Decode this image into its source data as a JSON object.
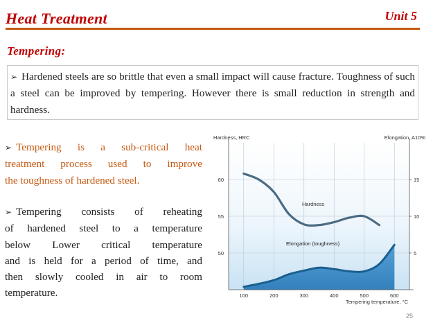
{
  "header": {
    "title": "Heat Treatment",
    "unit": "Unit 5"
  },
  "section": {
    "heading": "Tempering:"
  },
  "intro_bullet": "Hardened steels are so brittle that even a small impact will cause fracture. Toughness of such a steel can be improved by tempering. However there is small reduction in strength and hardness.",
  "left_bullets": {
    "p1": {
      "line1": "Tempering is a sub-critical heat",
      "line2": "treatment process used to improve",
      "line3": "the toughness of hardened steel."
    },
    "p2": {
      "line1": "Tempering consists of reheating",
      "line2": "of hardened steel to a temperature",
      "line3": "below Lower critical temperature",
      "line4": "and is held for a period of time, and",
      "line5": "then slowly cooled in air to room",
      "line6": "temperature."
    }
  },
  "colors": {
    "title_red": "#c00000",
    "rule_orange": "#c55a11",
    "chart_blue": "#1f78bd",
    "curve_grey": "#4a6b82",
    "curve_blue": "#1a5f8f"
  },
  "chart_data": {
    "type": "line",
    "title": "",
    "xlabel": "Tempering temperature, °C",
    "ylabel": "Hardness, HRC",
    "y2label": "Elongation, A10%",
    "xlim": [
      50,
      650
    ],
    "ylim": [
      45,
      65
    ],
    "y2lim": [
      0,
      20
    ],
    "xticks": [
      100,
      200,
      300,
      400,
      500,
      600
    ],
    "xtick_labels": [
      "100",
      "200",
      "300",
      "400",
      "500",
      "600"
    ],
    "yticks": [
      50,
      55,
      60
    ],
    "ytick_labels": [
      "50",
      "55",
      "60"
    ],
    "y2ticks": [
      5,
      10,
      15
    ],
    "y2tick_labels": [
      "5",
      "10",
      "15"
    ],
    "grid": true,
    "series": [
      {
        "name": "Hardness",
        "axis": "left",
        "x": [
          100,
          150,
          200,
          250,
          300,
          350,
          400,
          450,
          500,
          550
        ],
        "values": [
          60.8,
          60.0,
          58.3,
          55.3,
          53.9,
          53.8,
          54.2,
          54.8,
          55.0,
          53.8
        ]
      },
      {
        "name": "Elongation (toughness)",
        "axis": "right",
        "x": [
          100,
          150,
          200,
          250,
          300,
          350,
          400,
          450,
          500,
          550,
          600
        ],
        "values": [
          0.4,
          0.8,
          1.3,
          2.1,
          2.6,
          3.0,
          2.8,
          2.5,
          2.5,
          3.5,
          6.1
        ]
      }
    ]
  },
  "slide_number": "25"
}
